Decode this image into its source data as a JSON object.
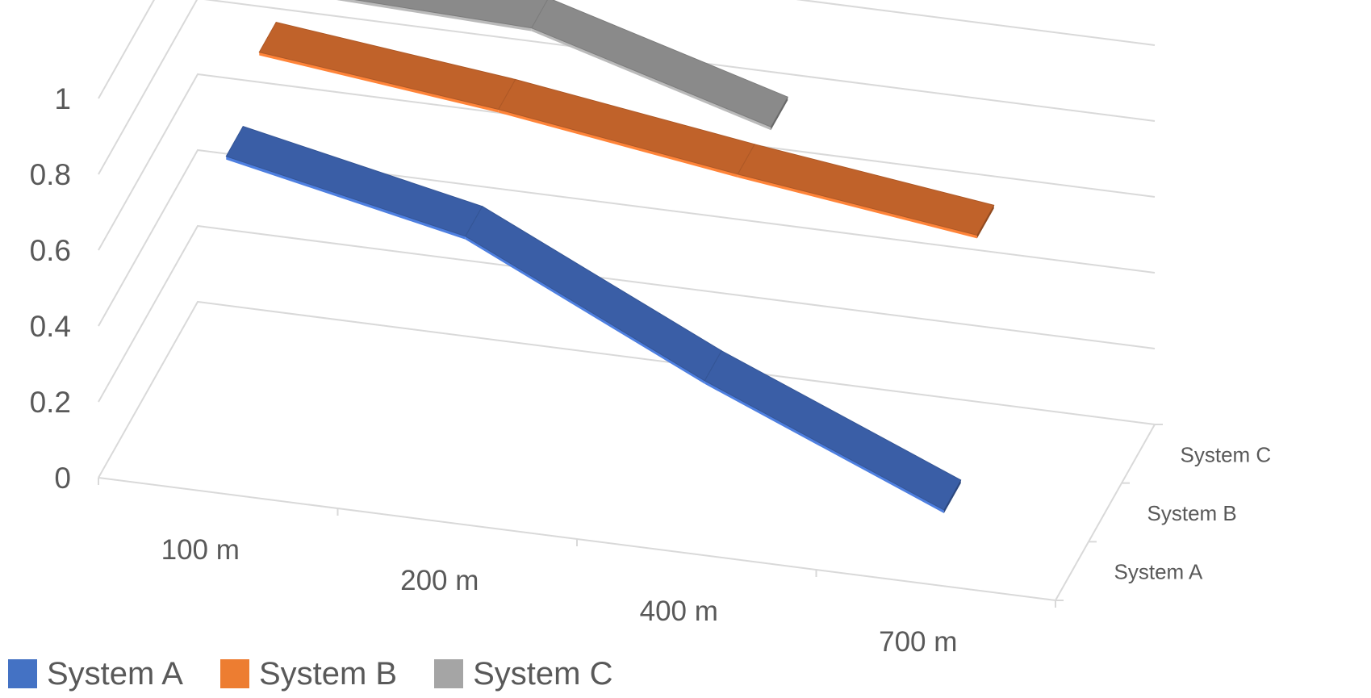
{
  "chart_data": {
    "type": "line",
    "style": "3d-ribbon",
    "categories": [
      "100 m",
      "200 m",
      "400 m",
      "700 m"
    ],
    "depth_categories": [
      "System A",
      "System B",
      "System C"
    ],
    "y_ticks": [
      "0",
      "0.2",
      "0.4",
      "0.6",
      "0.8",
      "1"
    ],
    "ylim": [
      0,
      1
    ],
    "grid": true,
    "legend_position": "bottom-left",
    "series": [
      {
        "name": "System A",
        "color": "#3a5ea6",
        "values": [
          0.85,
          0.72,
          0.42,
          0.16
        ]
      },
      {
        "name": "System B",
        "color": "#c0622a",
        "values": [
          0.97,
          0.9,
          0.81,
          0.73
        ]
      },
      {
        "name": "System C",
        "color": "#8a8a8a",
        "values": [
          0.98,
          0.96,
          0.78,
          null
        ]
      }
    ]
  },
  "legend": {
    "items": [
      {
        "label": "System A",
        "color": "#4472c4"
      },
      {
        "label": "System B",
        "color": "#ed7d31"
      },
      {
        "label": "System C",
        "color": "#a5a5a5"
      }
    ]
  }
}
